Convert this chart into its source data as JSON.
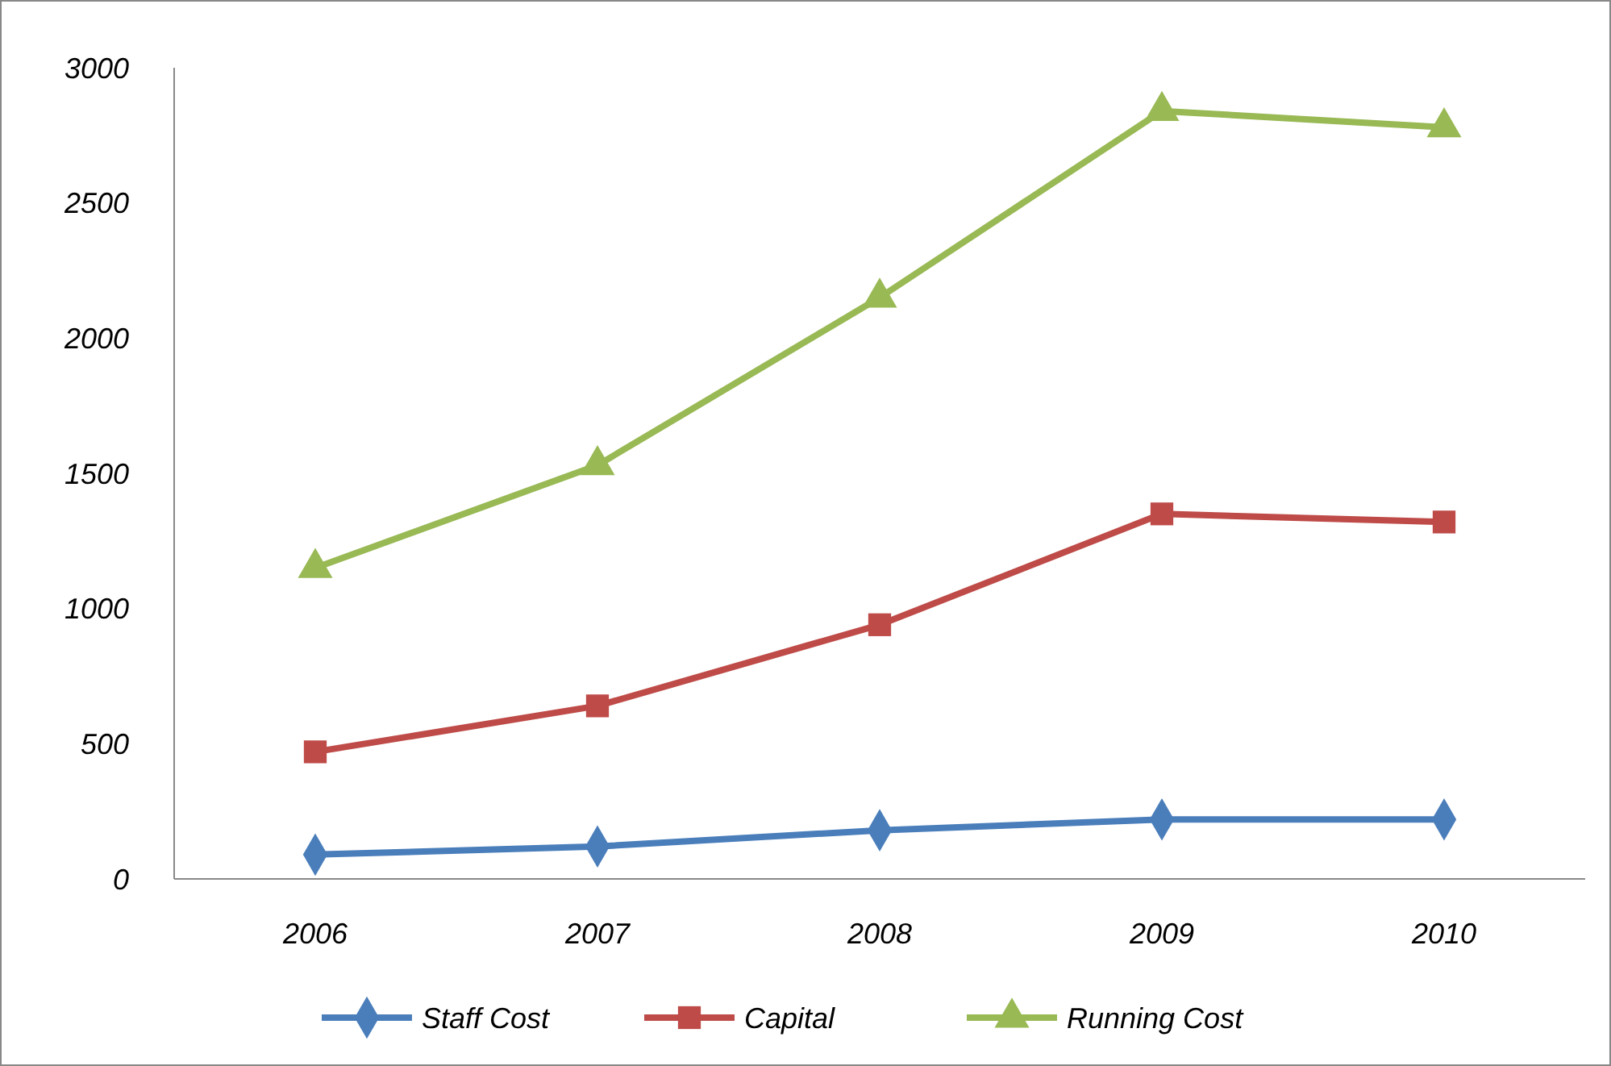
{
  "chart_data": {
    "type": "line",
    "categories": [
      "2006",
      "2007",
      "2008",
      "2009",
      "2010"
    ],
    "series": [
      {
        "name": "Staff Cost",
        "color": "#4a7ebb",
        "values": [
          90,
          120,
          180,
          220,
          220
        ],
        "marker": "diamond"
      },
      {
        "name": "Capital",
        "color": "#be4b48",
        "values": [
          470,
          640,
          940,
          1350,
          1320
        ],
        "marker": "square"
      },
      {
        "name": "Running Cost",
        "color": "#98b954",
        "values": [
          1150,
          1530,
          2150,
          2840,
          2780
        ],
        "marker": "triangle"
      }
    ],
    "ylim": [
      0,
      3000
    ],
    "yticks": [
      0,
      500,
      1000,
      1500,
      2000,
      2500,
      3000
    ],
    "grid": false,
    "legend": "bottom"
  }
}
